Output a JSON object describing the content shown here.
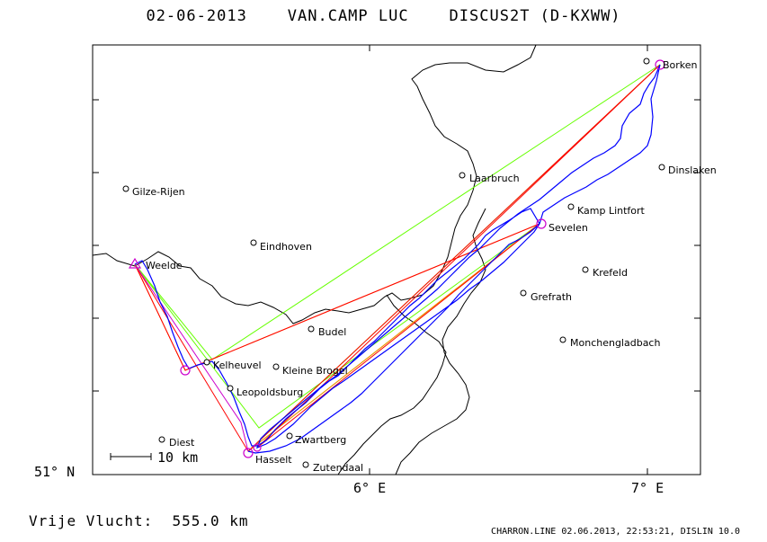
{
  "header": {
    "date": "02-06-2013",
    "pilot": "VAN.CAMP LUC",
    "glider": "DISCUS2T (D-KXWW)"
  },
  "footer": {
    "distance_text": "Vrije Vlucht:  555.0 km",
    "credit": "CHARRON.LINE 02.06.2013, 22:53:21, DISLIN 10.0"
  },
  "map": {
    "scale_label": "10 km",
    "axis": {
      "lat_label": "51° N",
      "lon_labels": [
        "6° E",
        "7° E"
      ]
    },
    "places": [
      {
        "name": "Borken"
      },
      {
        "name": "Laarbruch"
      },
      {
        "name": "Dinslaken"
      },
      {
        "name": "Gilze-Rijen"
      },
      {
        "name": "Kamp Lintfort"
      },
      {
        "name": "Sevelen"
      },
      {
        "name": "Eindhoven"
      },
      {
        "name": "Weelde"
      },
      {
        "name": "Krefeld"
      },
      {
        "name": "Grefrath"
      },
      {
        "name": "Budel"
      },
      {
        "name": "Monchengladbach"
      },
      {
        "name": "Kelheuvel"
      },
      {
        "name": "Kleine Brogel"
      },
      {
        "name": "Leopoldsburg"
      },
      {
        "name": "Diest"
      },
      {
        "name": "Zwartberg"
      },
      {
        "name": "Hasselt"
      },
      {
        "name": "Zutendaal"
      }
    ],
    "colors": {
      "track": "#0000ff",
      "task_red": "#ff0000",
      "task_green": "#66ff00",
      "task_orange": "#ff8800",
      "turnpoint": "#cc00cc",
      "border": "#000000"
    }
  }
}
